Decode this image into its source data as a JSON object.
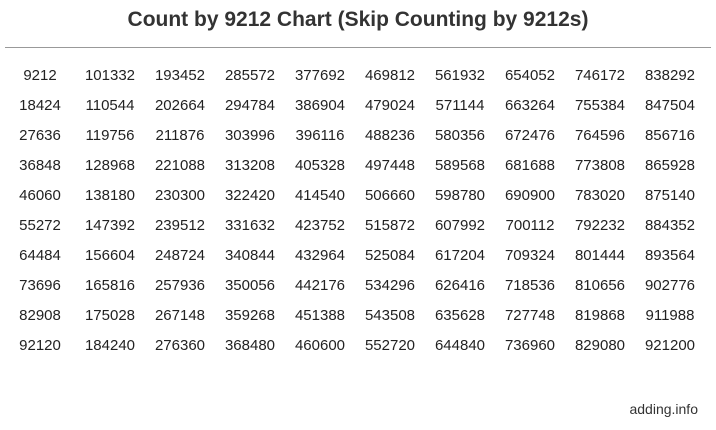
{
  "title": "Count by 9212 Chart (Skip Counting by 9212s)",
  "credit": "adding.info",
  "table": {
    "rows": [
      [
        "9212",
        "101332",
        "193452",
        "285572",
        "377692",
        "469812",
        "561932",
        "654052",
        "746172",
        "838292"
      ],
      [
        "18424",
        "110544",
        "202664",
        "294784",
        "386904",
        "479024",
        "571144",
        "663264",
        "755384",
        "847504"
      ],
      [
        "27636",
        "119756",
        "211876",
        "303996",
        "396116",
        "488236",
        "580356",
        "672476",
        "764596",
        "856716"
      ],
      [
        "36848",
        "128968",
        "221088",
        "313208",
        "405328",
        "497448",
        "589568",
        "681688",
        "773808",
        "865928"
      ],
      [
        "46060",
        "138180",
        "230300",
        "322420",
        "414540",
        "506660",
        "598780",
        "690900",
        "783020",
        "875140"
      ],
      [
        "55272",
        "147392",
        "239512",
        "331632",
        "423752",
        "515872",
        "607992",
        "700112",
        "792232",
        "884352"
      ],
      [
        "64484",
        "156604",
        "248724",
        "340844",
        "432964",
        "525084",
        "617204",
        "709324",
        "801444",
        "893564"
      ],
      [
        "73696",
        "165816",
        "257936",
        "350056",
        "442176",
        "534296",
        "626416",
        "718536",
        "810656",
        "902776"
      ],
      [
        "82908",
        "175028",
        "267148",
        "359268",
        "451388",
        "543508",
        "635628",
        "727748",
        "819868",
        "911988"
      ],
      [
        "92120",
        "184240",
        "276360",
        "368480",
        "460600",
        "552720",
        "644840",
        "736960",
        "829080",
        "921200"
      ]
    ]
  }
}
